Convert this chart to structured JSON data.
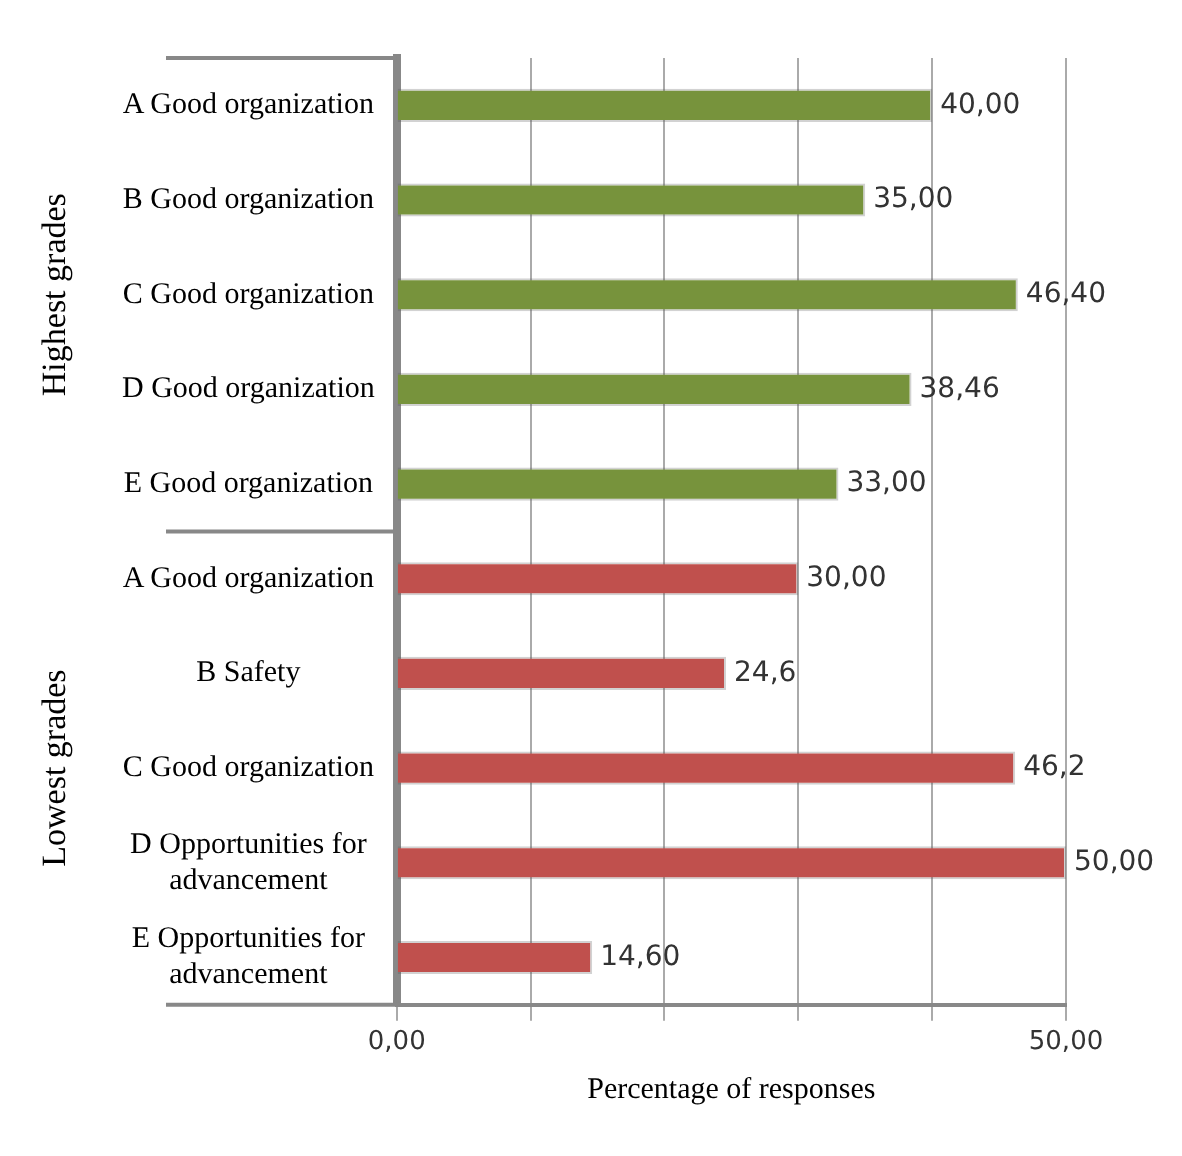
{
  "chart_data": {
    "type": "bar",
    "orientation": "horizontal",
    "xlabel": "Percentage of responses",
    "categories": [
      "A Good organization",
      "B Good organization",
      "C Good organization",
      "D Good organization",
      "E Good organization",
      "A Good organization",
      "B Safety",
      "C Good organization",
      "D Opportunities for advancement",
      "E Opportunities for advancement"
    ],
    "values": [
      40.0,
      35.0,
      46.4,
      38.46,
      33.0,
      30.0,
      24.6,
      46.2,
      50.0,
      14.6
    ],
    "value_labels": [
      "40,00",
      "35,00",
      "46,40",
      "38,46",
      "33,00",
      "30,00",
      "24,6",
      "46,2",
      "50,00",
      "14,60"
    ],
    "colors": [
      "#77933c",
      "#77933c",
      "#77933c",
      "#77933c",
      "#77933c",
      "#c0504d",
      "#c0504d",
      "#c0504d",
      "#c0504d",
      "#c0504d"
    ],
    "xlim": [
      0,
      50
    ],
    "xticks": [
      {
        "value": 0,
        "label": "0,00"
      },
      {
        "value": 10,
        "label": null
      },
      {
        "value": 20,
        "label": null
      },
      {
        "value": 30,
        "label": null
      },
      {
        "value": 40,
        "label": null
      },
      {
        "value": 50,
        "label": "50,00"
      }
    ],
    "grid": "x",
    "legend": false,
    "annotations": [
      "Highest grades",
      "Lowest grades"
    ]
  }
}
